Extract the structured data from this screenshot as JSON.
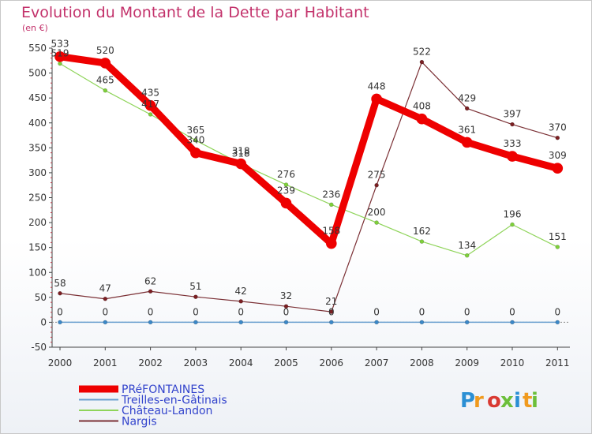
{
  "title": "Evolution du Montant de la Dette par Habitant",
  "subtitle": "(en €)",
  "logo": "Proxiti",
  "chart_data": {
    "type": "line",
    "title": "Evolution du Montant de la Dette par Habitant",
    "subtitle": "(en €)",
    "xlabel": "",
    "ylabel": "",
    "ylim": [
      -50,
      550
    ],
    "yticks": [
      -50,
      0,
      50,
      100,
      150,
      200,
      250,
      300,
      350,
      400,
      450,
      500,
      550
    ],
    "grid": false,
    "legend_position": "bottom-left",
    "x": [
      "2000",
      "2001",
      "2002",
      "2003",
      "2004",
      "2005",
      "2006",
      "2007",
      "2008",
      "2009",
      "2010",
      "2011"
    ],
    "series": [
      {
        "name": "Nargis",
        "color": "#7b1f22",
        "line_color": "#7b3035",
        "width": 1.2,
        "marker": 5,
        "values": [
          58,
          47,
          62,
          51,
          42,
          32,
          21,
          275,
          522,
          429,
          397,
          370
        ],
        "labels": [
          "58",
          "47",
          "62",
          "51",
          "42",
          "32",
          "21",
          "275",
          "522",
          "429",
          "397",
          "370"
        ]
      },
      {
        "name": "Château-Landon",
        "color": "#7ed03a",
        "line_color": "#8fd45a",
        "width": 1.2,
        "marker": 5,
        "values": [
          519,
          465,
          417,
          365,
          318,
          276,
          236,
          200,
          162,
          134,
          196,
          151
        ],
        "labels": [
          "519",
          "465",
          "417",
          "365",
          "318",
          "276",
          "236",
          "200",
          "162",
          "134",
          "196",
          "151"
        ]
      },
      {
        "name": "Treilles-en-Gâtinais",
        "color": "#3b88c8",
        "line_color": "#6aa0cf",
        "width": 1.5,
        "marker": 5,
        "values": [
          0,
          0,
          0,
          0,
          0,
          0,
          0,
          0,
          0,
          0,
          0,
          0
        ],
        "labels": [
          "0",
          "0",
          "0",
          "0",
          "0",
          "0",
          "0",
          "0",
          "0",
          "0",
          "0",
          "0"
        ]
      },
      {
        "name": "PRéFONTAINES",
        "color": "#ee0000",
        "line_color": "#ee0000",
        "width": 9,
        "marker": 13,
        "values": [
          533,
          520,
          435,
          340,
          318,
          239,
          158,
          448,
          408,
          361,
          333,
          309
        ],
        "labels": [
          "533",
          "520",
          "435",
          "340",
          "318",
          "239",
          "158",
          "448",
          "408",
          "361",
          "333",
          "309"
        ]
      }
    ],
    "legend": [
      "PRéFONTAINES",
      "Treilles-en-Gâtinais",
      "Château-Landon",
      "Nargis"
    ]
  }
}
